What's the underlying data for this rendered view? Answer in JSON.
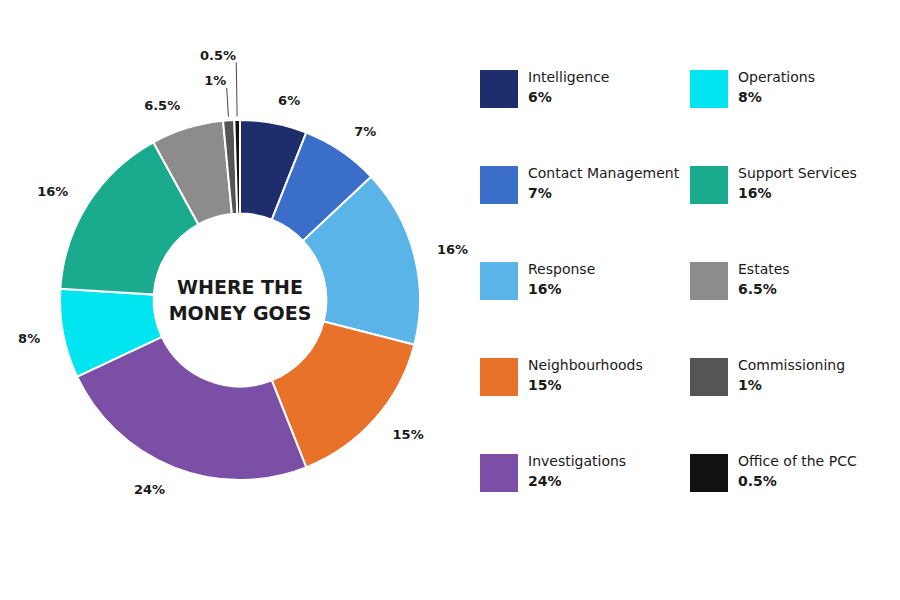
{
  "chart_data": {
    "type": "pie",
    "title": "WHERE THE\nMONEY GOES",
    "categories": [
      "Intelligence",
      "Contact Management",
      "Response",
      "Neighbourhoods",
      "Investigations",
      "Operations",
      "Support Services",
      "Estates",
      "Commissioning",
      "Office of the PCC"
    ],
    "values": [
      6.0,
      7.0,
      16.0,
      15.0,
      24.0,
      8.0,
      16.0,
      6.5,
      1.0,
      0.5
    ],
    "value_labels": [
      "6%",
      "7%",
      "16%",
      "15%",
      "24%",
      "8%",
      "16%",
      "6.5%",
      "1%",
      "0.5%"
    ],
    "colors": [
      "#1e2d6b",
      "#3a6ec8",
      "#5ab4e8",
      "#e8722a",
      "#7b4fa6",
      "#00e5f0",
      "#1aaa8e",
      "#8c8c8c",
      "#555555",
      "#111111"
    ],
    "data_labels": true,
    "legend": "right"
  }
}
